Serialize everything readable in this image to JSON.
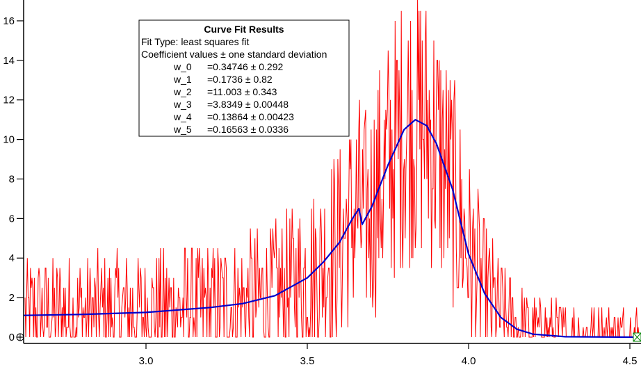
{
  "chart_data": {
    "type": "line",
    "title": "",
    "xlabel": "",
    "ylabel": "",
    "xlim": [
      2.62,
      4.535
    ],
    "ylim": [
      0,
      17
    ],
    "grid": false,
    "x_ticks": [
      "3.0",
      "3.5",
      "4.0",
      "4.5"
    ],
    "x_tick_values": [
      3.0,
      3.5,
      4.0,
      4.5
    ],
    "y_ticks": [
      "0",
      "2",
      "4",
      "6",
      "8",
      "10",
      "12",
      "14",
      "16"
    ],
    "y_tick_values": [
      0,
      2,
      4,
      6,
      8,
      10,
      12,
      14,
      16
    ],
    "series": [
      {
        "role": "data",
        "color": "#ff0000",
        "style": "noisy trace, peak clipped above 16"
      },
      {
        "role": "fit",
        "color": "#0000cc",
        "x": [
          2.62,
          2.8,
          3.0,
          3.2,
          3.3,
          3.4,
          3.5,
          3.55,
          3.6,
          3.64,
          3.66,
          3.67,
          3.7,
          3.75,
          3.8,
          3.835,
          3.87,
          3.9,
          3.95,
          4.0,
          4.05,
          4.1,
          4.15,
          4.2,
          4.3,
          4.52
        ],
        "y": [
          1.1,
          1.15,
          1.25,
          1.5,
          1.7,
          2.1,
          3.0,
          3.8,
          4.8,
          6.0,
          6.5,
          5.7,
          6.6,
          8.7,
          10.5,
          11.0,
          10.7,
          9.8,
          7.5,
          4.2,
          2.2,
          1.0,
          0.4,
          0.15,
          0.02,
          0.0
        ]
      }
    ],
    "annotation": {
      "title": "Curve Fit Results",
      "lines": [
        "Fit Type: least squares fit",
        "Coefficient values ± one standard deviation"
      ],
      "coefficients": [
        {
          "name": "w_0",
          "value": "=0.34746 ± 0.292"
        },
        {
          "name": "w_1",
          "value": "=0.1736 ± 0.82"
        },
        {
          "name": "w_2",
          "value": "=11.003 ± 0.343"
        },
        {
          "name": "w_3",
          "value": "=3.8349 ± 0.00448"
        },
        {
          "name": "w_4",
          "value": "=0.13864 ± 0.00423"
        },
        {
          "name": "w_5",
          "value": "=0.16563 ± 0.0336"
        }
      ]
    },
    "cursors": [
      {
        "name": "A",
        "icon": "circle-cross-icon",
        "color": "#000000"
      },
      {
        "name": "B",
        "icon": "box-x-icon",
        "color": "#008000"
      }
    ]
  }
}
